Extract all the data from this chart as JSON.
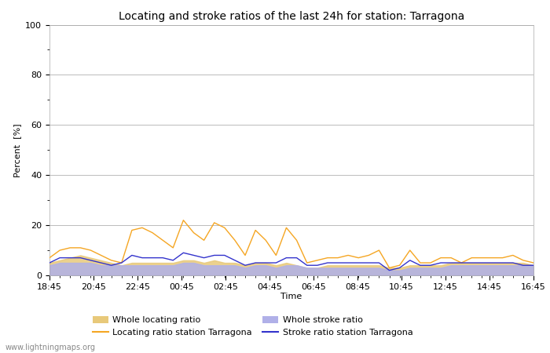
{
  "title": "Locating and stroke ratios of the last 24h for station: Tarragona",
  "ylabel": "Percent  [%]",
  "xlabel": "Time",
  "watermark": "www.lightningmaps.org",
  "ylim": [
    0,
    100
  ],
  "yticks": [
    0,
    20,
    40,
    60,
    80,
    100
  ],
  "xtick_labels": [
    "18:45",
    "20:45",
    "22:45",
    "00:45",
    "02:45",
    "04:45",
    "06:45",
    "08:45",
    "10:45",
    "12:45",
    "14:45",
    "16:45"
  ],
  "locating_station": [
    7,
    10,
    11,
    11,
    10,
    8,
    6,
    5,
    18,
    19,
    17,
    14,
    11,
    22,
    17,
    14,
    21,
    19,
    14,
    8,
    18,
    14,
    8,
    19,
    14,
    5,
    6,
    7,
    7,
    8,
    7,
    8,
    10,
    3,
    4,
    10,
    5,
    5,
    7,
    7,
    5,
    7,
    7,
    7,
    7,
    8,
    6,
    5
  ],
  "locating_whole": [
    5,
    6,
    7,
    8,
    7,
    6,
    5,
    4,
    5,
    5,
    5,
    5,
    5,
    6,
    6,
    5,
    6,
    5,
    5,
    4,
    5,
    5,
    4,
    5,
    4,
    3,
    3,
    4,
    4,
    4,
    4,
    4,
    4,
    3,
    3,
    4,
    4,
    4,
    4,
    5,
    5,
    5,
    5,
    5,
    5,
    5,
    5,
    4
  ],
  "stroke_station": [
    5,
    7,
    7,
    7,
    6,
    5,
    4,
    5,
    8,
    7,
    7,
    7,
    6,
    9,
    8,
    7,
    8,
    8,
    6,
    4,
    5,
    5,
    5,
    7,
    7,
    4,
    4,
    5,
    5,
    5,
    5,
    5,
    5,
    2,
    3,
    6,
    4,
    4,
    5,
    5,
    5,
    5,
    5,
    5,
    5,
    5,
    4,
    4
  ],
  "stroke_whole": [
    4,
    5,
    5,
    5,
    5,
    4,
    4,
    4,
    4,
    4,
    4,
    4,
    4,
    5,
    5,
    4,
    4,
    4,
    4,
    3,
    4,
    4,
    3,
    4,
    4,
    3,
    3,
    3,
    3,
    3,
    3,
    3,
    3,
    2,
    2,
    3,
    3,
    3,
    3,
    4,
    4,
    4,
    4,
    4,
    4,
    4,
    4,
    4
  ],
  "locating_station_color": "#f5a623",
  "locating_whole_color": "#e8c97a",
  "stroke_station_color": "#3333cc",
  "stroke_whole_color": "#b0b0e8",
  "bg_color": "#ffffff",
  "plot_bg_color": "#ffffff",
  "grid_color": "#bbbbbb",
  "title_fontsize": 10,
  "label_fontsize": 8,
  "tick_fontsize": 8
}
